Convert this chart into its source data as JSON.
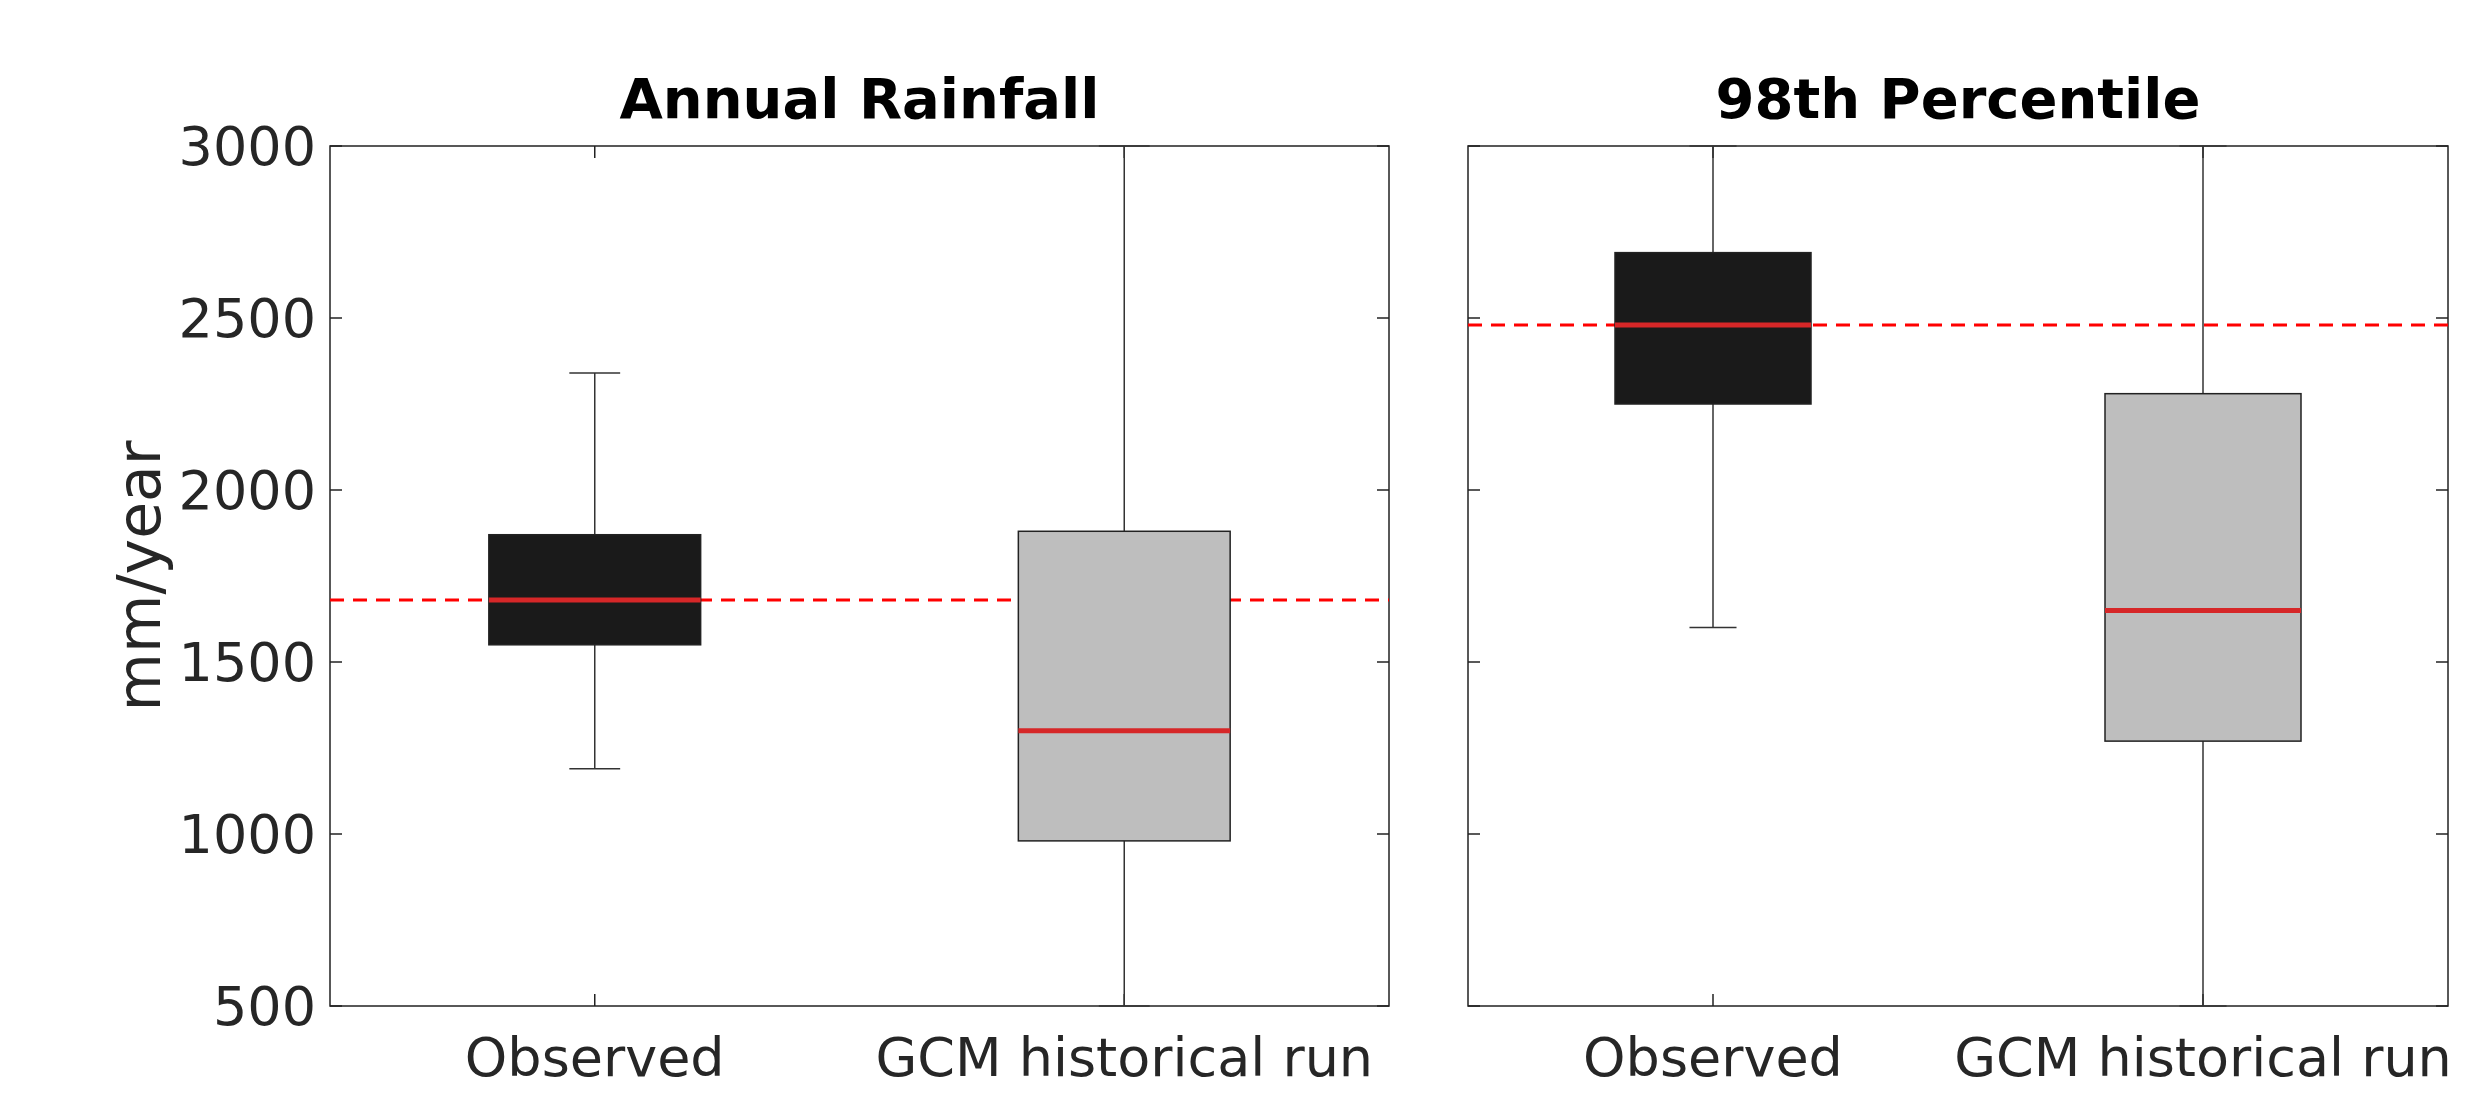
{
  "chart_data": [
    {
      "type": "box",
      "title": "Annual Rainfall",
      "ylabel": "mm/year",
      "categories": [
        "Observed",
        "GCM historical run"
      ],
      "colors": [
        "#1a1a1a",
        "#bebebe"
      ],
      "boxes": [
        {
          "low": 1190,
          "q1": 1550,
          "median": 1680,
          "q3": 1870,
          "high": 2340
        },
        {
          "low": 500,
          "q1": 980,
          "median": 1300,
          "q3": 1880,
          "high": 3000
        }
      ],
      "ylim": [
        500,
        3000
      ],
      "yticks": [
        500,
        1000,
        1500,
        2000,
        2500,
        3000
      ],
      "ref_lines": [
        {
          "axis": "y",
          "value": 1680,
          "color": "#ff0000",
          "line_style": "dashed"
        }
      ]
    },
    {
      "type": "box",
      "title": "98th Percentile",
      "categories": [
        "Observed",
        "GCM historical run"
      ],
      "colors": [
        "#1a1a1a",
        "#bebebe"
      ],
      "boxes": [
        {
          "low": 1600,
          "q1": 2250,
          "median": 2480,
          "q3": 2690,
          "high": 3000
        },
        {
          "low": 500,
          "q1": 1270,
          "median": 1650,
          "q3": 2280,
          "high": 3000
        }
      ],
      "ylim": [
        500,
        3000
      ],
      "yticks": [
        500,
        1000,
        1500,
        2000,
        2500,
        3000
      ],
      "tick_labels": "x",
      "ref_lines": [
        {
          "axis": "y",
          "value": 2480,
          "color": "#ff0000",
          "line_style": "dashed"
        }
      ]
    }
  ]
}
